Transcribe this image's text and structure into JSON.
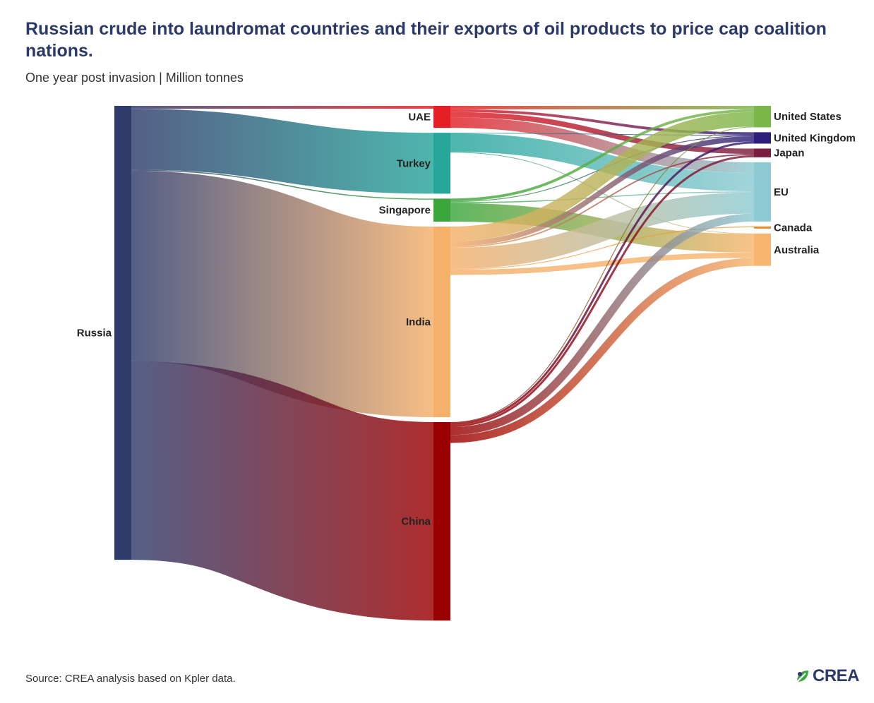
{
  "title": "Russian crude into laundromat countries and their exports of oil products to price cap coalition nations.",
  "subtitle": "One year post invasion | Million tonnes",
  "source": "Source: CREA analysis based on Kpler data.",
  "logo_text": "CREA",
  "chart_data": {
    "type": "sankey",
    "title": "Russian crude into laundromat countries and their exports of oil products to price cap coalition nations.",
    "subtitle": "One year post invasion | Million tonnes",
    "nodes": [
      {
        "id": "russia",
        "label": "Russia",
        "color": "#2f3c6b"
      },
      {
        "id": "uae",
        "label": "UAE",
        "color": "#e31e24"
      },
      {
        "id": "turkey",
        "label": "Turkey",
        "color": "#26a69a"
      },
      {
        "id": "singapore",
        "label": "Singapore",
        "color": "#3aa63c"
      },
      {
        "id": "india",
        "label": "India",
        "color": "#f5b06a"
      },
      {
        "id": "china",
        "label": "China",
        "color": "#9b0000"
      },
      {
        "id": "us",
        "label": "United States",
        "color": "#7ab648"
      },
      {
        "id": "uk",
        "label": "United Kingdom",
        "color": "#2d1f7a"
      },
      {
        "id": "japan",
        "label": "Japan",
        "color": "#7a1d3f"
      },
      {
        "id": "eu",
        "label": "EU",
        "color": "#8ccbd3"
      },
      {
        "id": "canada",
        "label": "Canada",
        "color": "#f08a24"
      },
      {
        "id": "australia",
        "label": "Australia",
        "color": "#f7b56e"
      }
    ],
    "links": [
      {
        "source": "russia",
        "target": "uae",
        "value": 1.1
      },
      {
        "source": "russia",
        "target": "turkey",
        "value": 23.0
      },
      {
        "source": "russia",
        "target": "singapore",
        "value": 0.4
      },
      {
        "source": "russia",
        "target": "india",
        "value": 72.0
      },
      {
        "source": "russia",
        "target": "china",
        "value": 75.0
      },
      {
        "source": "uae",
        "target": "us",
        "value": 1.3
      },
      {
        "source": "uae",
        "target": "uk",
        "value": 1.0
      },
      {
        "source": "uae",
        "target": "japan",
        "value": 2.0
      },
      {
        "source": "uae",
        "target": "eu",
        "value": 4.0
      },
      {
        "source": "turkey",
        "target": "eu",
        "value": 7.0
      },
      {
        "source": "turkey",
        "target": "uk",
        "value": 0.2
      },
      {
        "source": "turkey",
        "target": "australia",
        "value": 0.2
      },
      {
        "source": "singapore",
        "target": "us",
        "value": 1.0
      },
      {
        "source": "singapore",
        "target": "uk",
        "value": 0.3
      },
      {
        "source": "singapore",
        "target": "eu",
        "value": 0.4
      },
      {
        "source": "singapore",
        "target": "australia",
        "value": 7.0
      },
      {
        "source": "india",
        "target": "us",
        "value": 5.5
      },
      {
        "source": "india",
        "target": "uk",
        "value": 2.0
      },
      {
        "source": "india",
        "target": "japan",
        "value": 0.5
      },
      {
        "source": "india",
        "target": "eu",
        "value": 8.0
      },
      {
        "source": "india",
        "target": "canada",
        "value": 0.3
      },
      {
        "source": "india",
        "target": "australia",
        "value": 2.0
      },
      {
        "source": "china",
        "target": "us",
        "value": 0.3
      },
      {
        "source": "china",
        "target": "uk",
        "value": 0.8
      },
      {
        "source": "china",
        "target": "japan",
        "value": 0.8
      },
      {
        "source": "china",
        "target": "eu",
        "value": 3.0
      },
      {
        "source": "china",
        "target": "australia",
        "value": 3.0
      }
    ]
  }
}
